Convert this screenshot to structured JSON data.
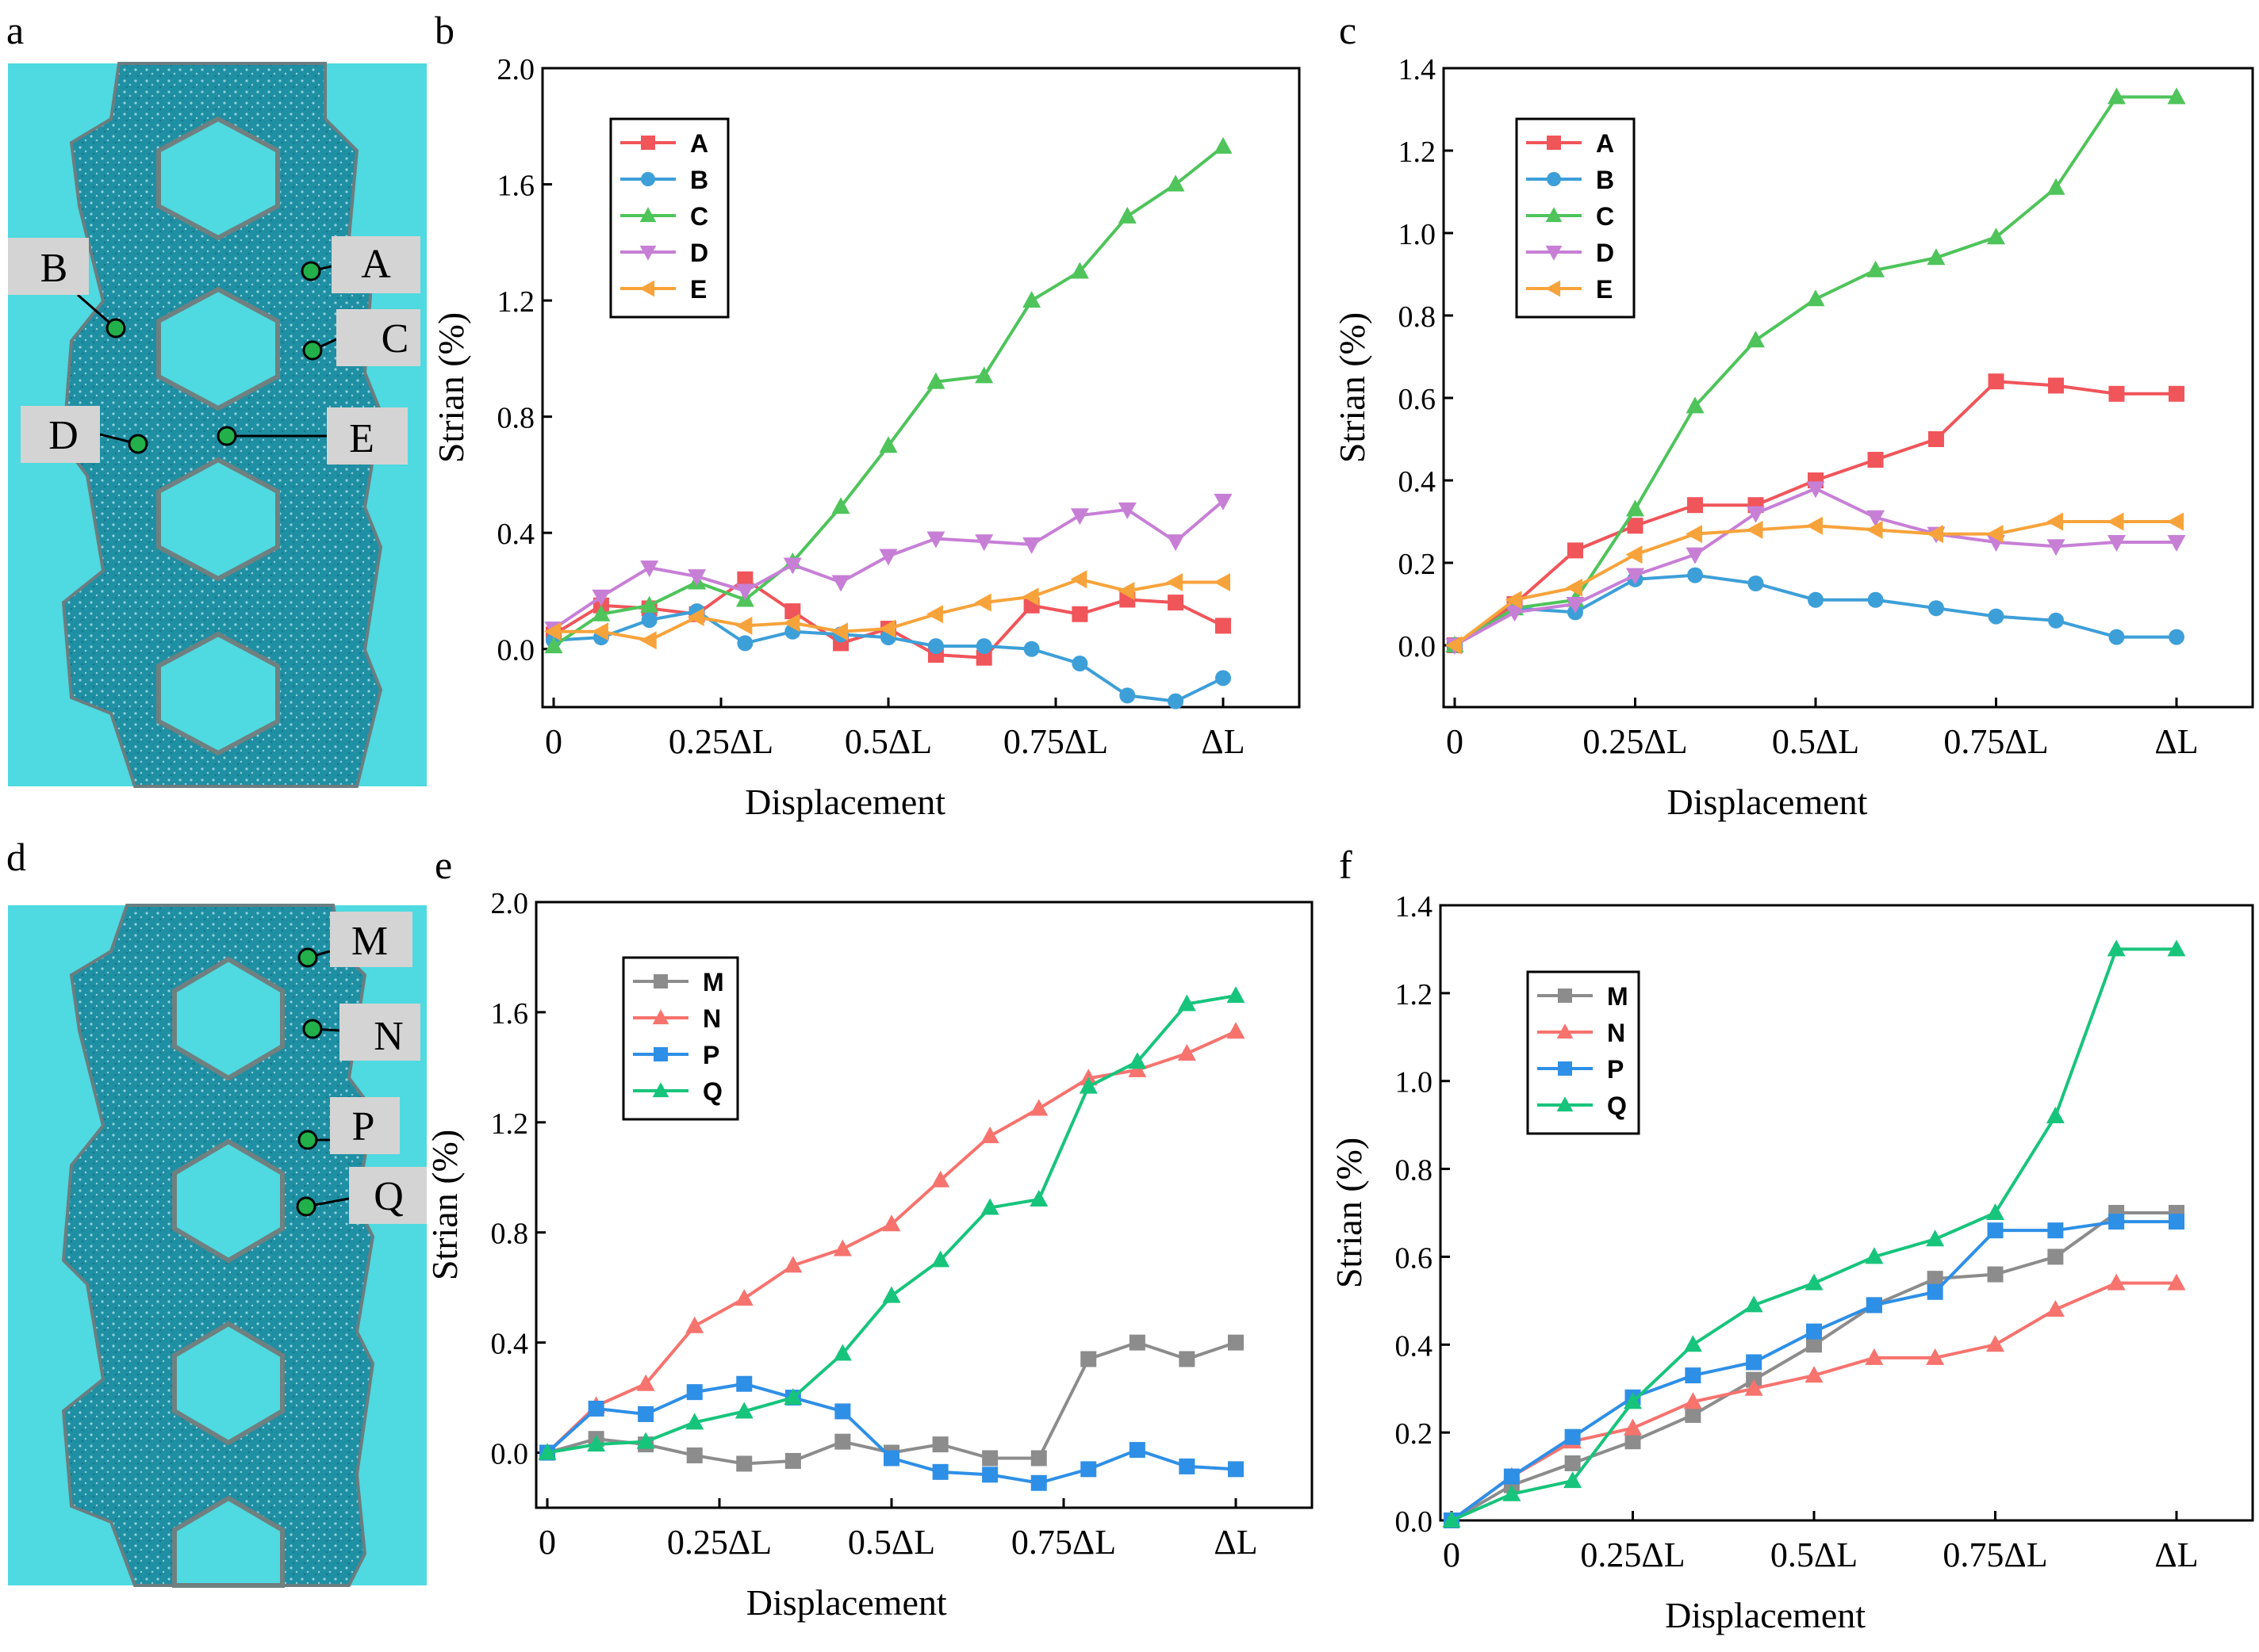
{
  "panel_letters": [
    "a",
    "b",
    "c",
    "d",
    "e",
    "f"
  ],
  "specimen_top": {
    "points": [
      {
        "letter": "A"
      },
      {
        "letter": "B"
      },
      {
        "letter": "C"
      },
      {
        "letter": "D"
      },
      {
        "letter": "E"
      }
    ]
  },
  "specimen_bottom": {
    "points": [
      {
        "letter": "M"
      },
      {
        "letter": "N"
      },
      {
        "letter": "P"
      },
      {
        "letter": "Q"
      }
    ]
  },
  "colors": {
    "A": "#f0555a",
    "B": "#3d9fd8",
    "C": "#4ec45a",
    "D": "#c77fd6",
    "E": "#f7a33b",
    "M": "#8c8c8c",
    "N": "#f7736e",
    "P": "#2e8fe6",
    "Q": "#17c47c",
    "specimen_bg": "#4fd9e0",
    "specimen_body": "#1f8fa3"
  },
  "chart_data": [
    {
      "panel": "b",
      "type": "line",
      "xlabel": "Displacement",
      "ylabel": "Strian (%)",
      "xlim": [
        0,
        1
      ],
      "ylim": [
        -0.2,
        2.0
      ],
      "xticks": [
        0,
        0.25,
        0.5,
        0.75,
        1
      ],
      "xtick_labels": [
        "0",
        "0.25ΔL",
        "0.5ΔL",
        "0.75ΔL",
        "ΔL"
      ],
      "yticks": [
        0.0,
        0.4,
        0.8,
        1.2,
        1.6,
        2.0
      ],
      "ytick_labels": [
        "0.0",
        "0.4",
        "0.8",
        "1.2",
        "1.6",
        "2.0"
      ],
      "x": [
        0,
        0.071,
        0.143,
        0.214,
        0.286,
        0.357,
        0.429,
        0.5,
        0.571,
        0.643,
        0.714,
        0.786,
        0.857,
        0.929,
        1.0
      ],
      "series": [
        {
          "name": "A",
          "marker": "square",
          "values": [
            0.05,
            0.15,
            0.14,
            0.12,
            0.24,
            0.13,
            0.02,
            0.07,
            -0.02,
            -0.03,
            0.15,
            0.12,
            0.17,
            0.16,
            0.08
          ]
        },
        {
          "name": "B",
          "marker": "circle",
          "values": [
            0.03,
            0.04,
            0.1,
            0.13,
            0.02,
            0.06,
            0.05,
            0.04,
            0.01,
            0.01,
            0.0,
            -0.05,
            -0.16,
            -0.18,
            -0.1
          ]
        },
        {
          "name": "C",
          "marker": "triangle-up",
          "values": [
            0.01,
            0.12,
            0.15,
            0.23,
            0.17,
            0.3,
            0.49,
            0.7,
            0.92,
            0.94,
            1.2,
            1.3,
            1.49,
            1.6,
            1.73
          ]
        },
        {
          "name": "D",
          "marker": "triangle-down",
          "values": [
            0.07,
            0.18,
            0.28,
            0.25,
            0.2,
            0.29,
            0.23,
            0.32,
            0.38,
            0.37,
            0.36,
            0.46,
            0.48,
            0.37,
            0.51
          ]
        },
        {
          "name": "E",
          "marker": "triangle-left",
          "values": [
            0.06,
            0.06,
            0.03,
            0.11,
            0.08,
            0.09,
            0.06,
            0.07,
            0.12,
            0.16,
            0.18,
            0.24,
            0.2,
            0.23,
            0.23
          ]
        }
      ]
    },
    {
      "panel": "c",
      "type": "line",
      "xlabel": "Displacement",
      "ylabel": "Strian (%)",
      "xlim": [
        0,
        1
      ],
      "ylim": [
        -0.15,
        1.4
      ],
      "xticks": [
        0,
        0.25,
        0.5,
        0.75,
        1
      ],
      "xtick_labels": [
        "0",
        "0.25ΔL",
        "0.5ΔL",
        "0.75ΔL",
        "ΔL"
      ],
      "yticks": [
        0.0,
        0.2,
        0.4,
        0.6,
        0.8,
        1.0,
        1.2,
        1.4
      ],
      "ytick_labels": [
        "0.0",
        "0.2",
        "0.4",
        "0.6",
        "0.8",
        "1.0",
        "1.2",
        "1.4"
      ],
      "x": [
        0,
        0.083,
        0.167,
        0.25,
        0.333,
        0.417,
        0.5,
        0.583,
        0.667,
        0.75,
        0.833,
        0.917,
        1.0
      ],
      "x_note": "series sampled at 12 equal steps",
      "series": [
        {
          "name": "A",
          "marker": "square",
          "values": [
            0.0,
            0.1,
            0.23,
            0.29,
            0.34,
            0.34,
            0.4,
            0.45,
            0.5,
            0.64,
            0.63,
            0.61,
            0.61
          ]
        },
        {
          "name": "B",
          "marker": "circle",
          "values": [
            0.0,
            0.09,
            0.08,
            0.16,
            0.17,
            0.15,
            0.11,
            0.11,
            0.09,
            0.07,
            0.06,
            0.02,
            0.02
          ]
        },
        {
          "name": "C",
          "marker": "triangle-up",
          "values": [
            0.0,
            0.09,
            0.11,
            0.33,
            0.58,
            0.74,
            0.84,
            0.91,
            0.94,
            0.99,
            1.11,
            1.33,
            1.33
          ]
        },
        {
          "name": "D",
          "marker": "triangle-down",
          "values": [
            0.0,
            0.08,
            0.1,
            0.17,
            0.22,
            0.32,
            0.38,
            0.31,
            0.27,
            0.25,
            0.24,
            0.25,
            0.25
          ]
        },
        {
          "name": "E",
          "marker": "triangle-left",
          "values": [
            0.0,
            0.11,
            0.14,
            0.22,
            0.27,
            0.28,
            0.29,
            0.28,
            0.27,
            0.27,
            0.3,
            0.3,
            0.3
          ]
        }
      ]
    },
    {
      "panel": "e",
      "type": "line",
      "xlabel": "Displacement",
      "ylabel": "Strian (%)",
      "xlim": [
        0,
        1
      ],
      "ylim": [
        -0.2,
        2.0
      ],
      "xticks": [
        0,
        0.25,
        0.5,
        0.75,
        1
      ],
      "xtick_labels": [
        "0",
        "0.25ΔL",
        "0.5ΔL",
        "0.75ΔL",
        "ΔL"
      ],
      "yticks": [
        0.0,
        0.4,
        0.8,
        1.2,
        1.6,
        2.0
      ],
      "ytick_labels": [
        "0.0",
        "0.4",
        "0.8",
        "1.2",
        "1.6",
        "2.0"
      ],
      "x": [
        0,
        0.071,
        0.143,
        0.214,
        0.286,
        0.357,
        0.429,
        0.5,
        0.571,
        0.643,
        0.714,
        0.786,
        0.857,
        0.929,
        1.0
      ],
      "series": [
        {
          "name": "M",
          "marker": "square",
          "values": [
            0.0,
            0.05,
            0.03,
            -0.01,
            -0.04,
            -0.03,
            0.04,
            0.0,
            0.03,
            -0.02,
            -0.02,
            0.34,
            0.4,
            0.34,
            0.4
          ]
        },
        {
          "name": "N",
          "marker": "triangle-up",
          "values": [
            0.0,
            0.17,
            0.25,
            0.46,
            0.56,
            0.68,
            0.74,
            0.83,
            0.99,
            1.15,
            1.25,
            1.36,
            1.39,
            1.45,
            1.53
          ]
        },
        {
          "name": "P",
          "marker": "square",
          "values": [
            0.0,
            0.16,
            0.14,
            0.22,
            0.25,
            0.2,
            0.15,
            -0.02,
            -0.07,
            -0.08,
            -0.11,
            -0.06,
            0.01,
            -0.05,
            -0.06
          ]
        },
        {
          "name": "Q",
          "marker": "triangle-up",
          "values": [
            0.0,
            0.03,
            0.04,
            0.11,
            0.15,
            0.2,
            0.36,
            0.57,
            0.7,
            0.89,
            0.92,
            1.33,
            1.42,
            1.63,
            1.66
          ]
        }
      ]
    },
    {
      "panel": "f",
      "type": "line",
      "xlabel": "Displacement",
      "ylabel": "Strian (%)",
      "xlim": [
        0,
        1
      ],
      "ylim": [
        0,
        1.4
      ],
      "xticks": [
        0,
        0.25,
        0.5,
        0.75,
        1
      ],
      "xtick_labels": [
        "0",
        "0.25ΔL",
        "0.5ΔL",
        "0.75ΔL",
        "ΔL"
      ],
      "yticks": [
        0.0,
        0.2,
        0.4,
        0.6,
        0.8,
        1.0,
        1.2,
        1.4
      ],
      "ytick_labels": [
        "0.0",
        "0.2",
        "0.4",
        "0.6",
        "0.8",
        "1.0",
        "1.2",
        "1.4"
      ],
      "x": [
        0,
        0.083,
        0.167,
        0.25,
        0.333,
        0.417,
        0.5,
        0.583,
        0.667,
        0.75,
        0.833,
        0.917,
        1.0
      ],
      "series": [
        {
          "name": "M",
          "marker": "square",
          "values": [
            0.0,
            0.08,
            0.13,
            0.18,
            0.24,
            0.32,
            0.4,
            0.49,
            0.55,
            0.56,
            0.6,
            0.7,
            0.7
          ]
        },
        {
          "name": "N",
          "marker": "triangle-up",
          "values": [
            0.0,
            0.1,
            0.18,
            0.21,
            0.27,
            0.3,
            0.33,
            0.37,
            0.37,
            0.4,
            0.48,
            0.54,
            0.54
          ]
        },
        {
          "name": "P",
          "marker": "square",
          "values": [
            0.0,
            0.1,
            0.19,
            0.28,
            0.33,
            0.36,
            0.43,
            0.49,
            0.52,
            0.66,
            0.66,
            0.68,
            0.68
          ]
        },
        {
          "name": "Q",
          "marker": "triangle-up",
          "values": [
            0.0,
            0.06,
            0.09,
            0.27,
            0.4,
            0.49,
            0.54,
            0.6,
            0.64,
            0.7,
            0.92,
            1.3,
            1.3
          ]
        }
      ]
    }
  ]
}
